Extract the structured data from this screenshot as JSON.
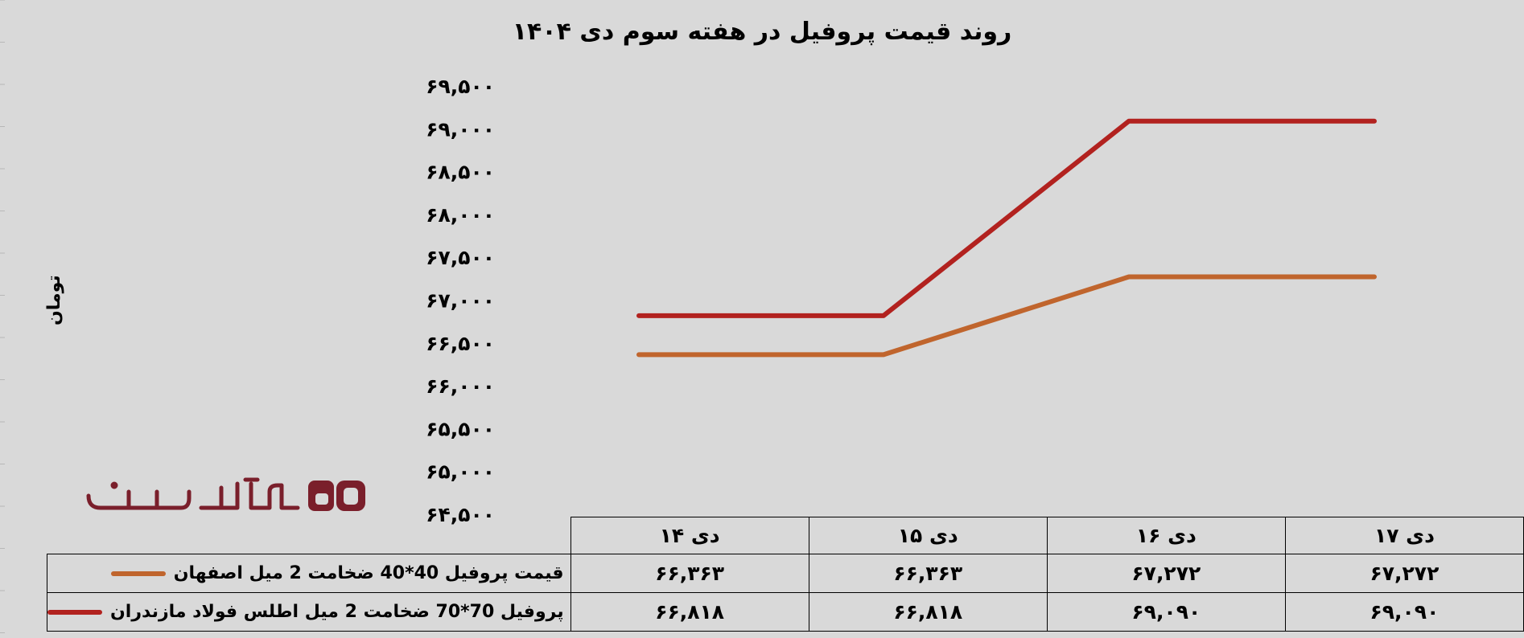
{
  "chart_data": {
    "type": "line",
    "title": "روند قیمت پروفیل در هفته سوم دی ۱۴۰۴",
    "ylabel": "تومان",
    "ylim": [
      64500,
      69500
    ],
    "ytick_step": 500,
    "yticks": [
      "۶۴,۵۰۰",
      "۶۵,۰۰۰",
      "۶۵,۵۰۰",
      "۶۶,۰۰۰",
      "۶۶,۵۰۰",
      "۶۷,۰۰۰",
      "۶۷,۵۰۰",
      "۶۸,۰۰۰",
      "۶۸,۵۰۰",
      "۶۹,۰۰۰",
      "۶۹,۵۰۰"
    ],
    "categories": [
      "دی ۱۴",
      "دی ۱۵",
      "دی ۱۶",
      "دی ۱۷"
    ],
    "grid": false,
    "legend": "data-table",
    "series": [
      {
        "name": "قیمت پروفیل 40*40 ضخامت 2 میل اصفهان",
        "color": "#c0652d",
        "values": [
          66363,
          66363,
          67272,
          67272
        ],
        "labels": [
          "۶۶,۳۶۳",
          "۶۶,۳۶۳",
          "۶۷,۲۷۲",
          "۶۷,۲۷۲"
        ]
      },
      {
        "name": "پروفیل 70*70 ضخامت 2 میل اطلس فولاد مازندران",
        "color": "#b2221f",
        "values": [
          66818,
          66818,
          69090,
          69090
        ],
        "labels": [
          "۶۶,۸۱۸",
          "۶۶,۸۱۸",
          "۶۹,۰۹۰",
          "۶۹,۰۹۰"
        ]
      }
    ]
  },
  "logo": {
    "text": "آهن آنلاین",
    "mark": "aO",
    "color": "#7a1f2b"
  }
}
